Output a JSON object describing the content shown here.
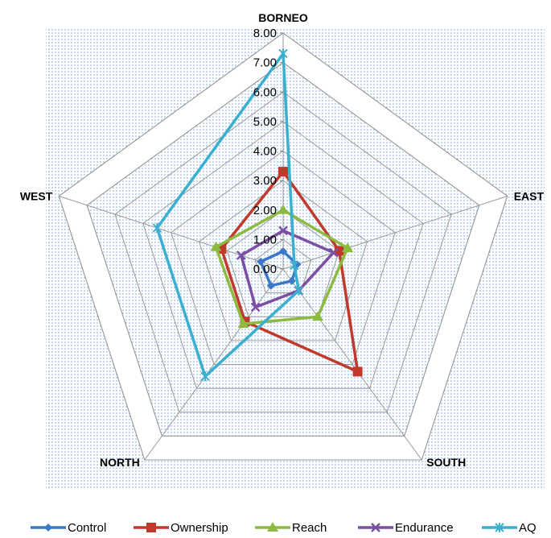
{
  "chart_data": {
    "type": "radar",
    "title": "",
    "axes": [
      "BORNEO",
      "EAST",
      "SOUTH",
      "NORTH",
      "WEST"
    ],
    "rlim": [
      0,
      8
    ],
    "tick_values": [
      0,
      1,
      2,
      3,
      4,
      5,
      6,
      7,
      8
    ],
    "tick_labels": [
      "0.00",
      "1.00",
      "2.00",
      "3.00",
      "4.00",
      "5.00",
      "6.00",
      "7.00",
      "8.00"
    ],
    "grid": true,
    "legend_position": "bottom",
    "series": [
      {
        "name": "Control",
        "values": [
          0.6,
          0.5,
          0.5,
          0.7,
          0.8
        ],
        "color": "#3C78C8",
        "marker": "diamond"
      },
      {
        "name": "Ownership",
        "values": [
          3.3,
          2.0,
          4.3,
          2.2,
          2.2
        ],
        "color": "#C0392B",
        "marker": "square"
      },
      {
        "name": "Reach",
        "values": [
          2.0,
          2.3,
          2.0,
          2.3,
          2.4
        ],
        "color": "#8DBB3F",
        "marker": "triangle"
      },
      {
        "name": "Endurance",
        "values": [
          1.3,
          1.8,
          0.9,
          1.6,
          1.5
        ],
        "color": "#7B4FA2",
        "marker": "x"
      },
      {
        "name": "AQ",
        "values": [
          7.3,
          0.4,
          0.9,
          4.5,
          4.5
        ],
        "color": "#3AAFD0",
        "marker": "star"
      }
    ]
  }
}
